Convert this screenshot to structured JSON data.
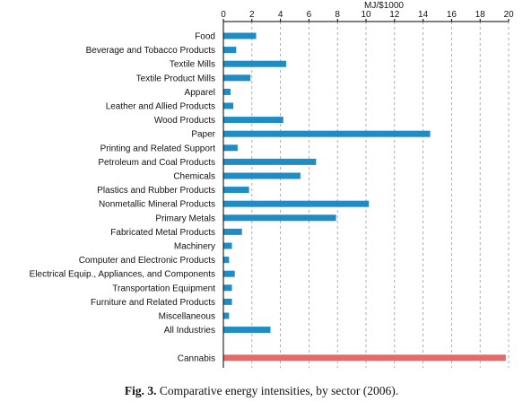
{
  "caption": {
    "label": "Fig. 3.",
    "text": "Comparative energy intensities, by sector (2006)."
  },
  "colors": {
    "bar": "#1f8dc4",
    "highlight": "#e66a6a",
    "grid": "#9a9a9a",
    "axis": "#000000"
  },
  "chart_data": {
    "type": "bar",
    "orientation": "horizontal",
    "title": "",
    "xlabel": "MJ/$1000",
    "ylabel": "",
    "xlim": [
      0,
      20
    ],
    "xticks": [
      0,
      2,
      4,
      6,
      8,
      10,
      12,
      14,
      16,
      18,
      20
    ],
    "axis_position": "top",
    "grid": "vertical dashed",
    "categories": [
      "Food",
      "Beverage and Tobacco Products",
      "Textile Mills",
      "Textile Product Mills",
      "Apparel",
      "Leather and Allied Products",
      "Wood Products",
      "Paper",
      "Printing and Related Support",
      "Petroleum and Coal Products",
      "Chemicals",
      "Plastics and Rubber Products",
      "Nonmetallic Mineral Products",
      "Primary Metals",
      "Fabricated Metal Products",
      "Machinery",
      "Computer and Electronic Products",
      "Electrical Equip., Appliances, and Components",
      "Transportation Equipment",
      "Furniture and Related Products",
      "Miscellaneous",
      "All Industries",
      "",
      "Cannabis"
    ],
    "values": [
      2.3,
      0.9,
      4.4,
      1.9,
      0.5,
      0.7,
      4.2,
      14.5,
      1.0,
      6.5,
      5.4,
      1.8,
      10.2,
      7.9,
      1.3,
      0.6,
      0.4,
      0.8,
      0.6,
      0.6,
      0.4,
      3.3,
      null,
      19.8
    ],
    "highlight_index": 23
  }
}
